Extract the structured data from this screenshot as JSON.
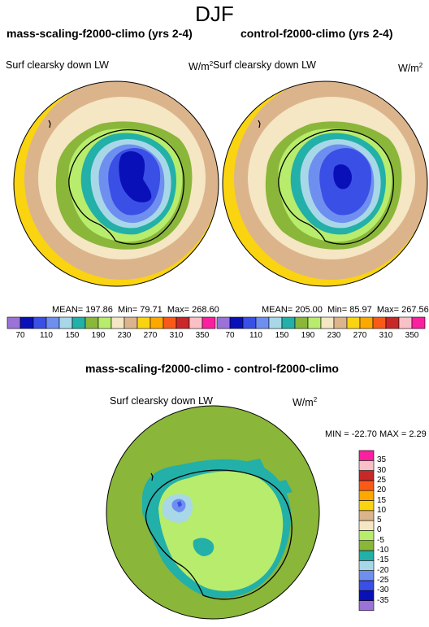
{
  "title": "DJF",
  "panels": [
    {
      "title": "mass-scaling-f2000-climo (yrs 2-4)",
      "variable": "Surf clearsky down LW",
      "units": "W/m",
      "units_exp": "2",
      "mean": "MEAN= 197.86",
      "min": "Min=  79.71",
      "max": "Max= 268.60"
    },
    {
      "title": "control-f2000-climo (yrs 2-4)",
      "variable": "Surf clearsky down LW",
      "units": "W/m",
      "units_exp": "2",
      "mean": "MEAN= 205.00",
      "min": "Min=  85.97",
      "max": "Max= 267.56"
    }
  ],
  "diff_panel": {
    "title": "mass-scaling-f2000-climo - control-f2000-climo",
    "variable": "Surf clearsky down LW",
    "units": "W/m",
    "units_exp": "2",
    "minmax": "MIN = -22.70 MAX =   2.29"
  },
  "colorbar_main": {
    "colors": [
      "#9b72d8",
      "#0a10b8",
      "#3a4fe6",
      "#6f8ff0",
      "#a8d8e8",
      "#22b0a8",
      "#8ab63a",
      "#b8ec6c",
      "#f5e6c4",
      "#dcb48c",
      "#fad410",
      "#fca800",
      "#fa5a18",
      "#c82828",
      "#fac0c8",
      "#fa20a0"
    ],
    "labels": [
      "70",
      "110",
      "150",
      "190",
      "230",
      "270",
      "310",
      "350"
    ]
  },
  "colorbar_diff": {
    "colors": [
      "#9b72d8",
      "#0a10b8",
      "#3a4fe6",
      "#6f8ff0",
      "#a8d8e8",
      "#22b0a8",
      "#8ab63a",
      "#b8ec6c",
      "#f5e6c4",
      "#dcb48c",
      "#fad410",
      "#fca800",
      "#fa5a18",
      "#c82828",
      "#fac0c8",
      "#fa20a0"
    ],
    "labels": [
      "-35",
      "-30",
      "-25",
      "-20",
      "-15",
      "-10",
      "-5",
      "0",
      "5",
      "10",
      "15",
      "20",
      "25",
      "30",
      "35"
    ]
  }
}
